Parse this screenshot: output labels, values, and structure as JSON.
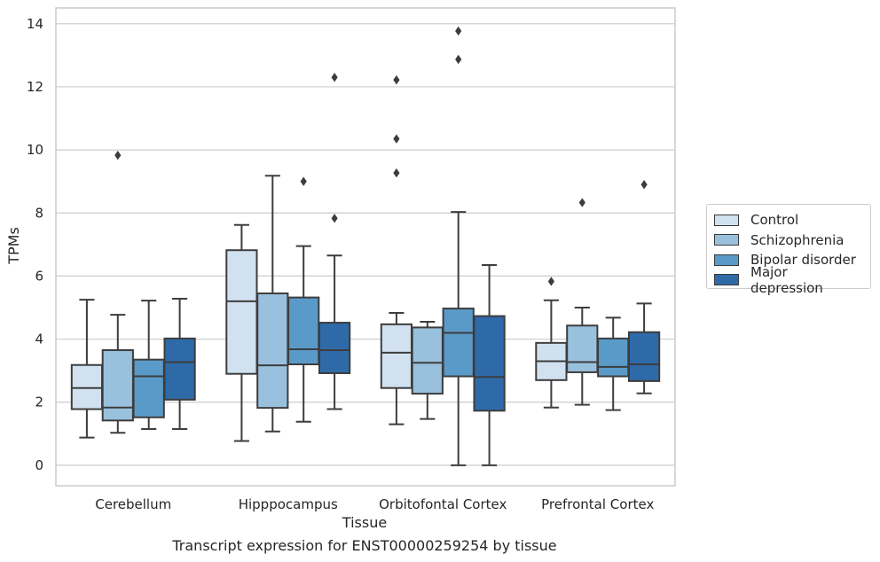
{
  "caption": "Transcript expression for ENST00000259254 by tissue",
  "chart_data": {
    "type": "box",
    "xlabel": "Tissue",
    "ylabel": "TPMs",
    "ylim": [
      -0.65,
      14.5
    ],
    "yticks": [
      0,
      2,
      4,
      6,
      8,
      10,
      12,
      14
    ],
    "grid": true,
    "legend_position": "right",
    "categories": [
      "Cerebellum",
      "Hipppocampus",
      "Orbitofontal Cortex",
      "Prefrontal Cortex"
    ],
    "series": [
      {
        "name": "Control",
        "color": "#d1e1f0",
        "boxes": [
          {
            "whislo": 0.88,
            "q1": 1.78,
            "med": 2.45,
            "q3": 3.18,
            "whishi": 5.25,
            "fliers": []
          },
          {
            "whislo": 0.77,
            "q1": 2.9,
            "med": 5.2,
            "q3": 6.82,
            "whishi": 7.62,
            "fliers": []
          },
          {
            "whislo": 1.3,
            "q1": 2.45,
            "med": 3.57,
            "q3": 4.47,
            "whishi": 4.83,
            "fliers": [
              9.27,
              10.35,
              12.22
            ]
          },
          {
            "whislo": 1.83,
            "q1": 2.7,
            "med": 3.3,
            "q3": 3.88,
            "whishi": 5.23,
            "fliers": [
              5.83
            ]
          }
        ]
      },
      {
        "name": "Schizophrenia",
        "color": "#99c1dd",
        "boxes": [
          {
            "whislo": 1.03,
            "q1": 1.42,
            "med": 1.83,
            "q3": 3.65,
            "whishi": 4.77,
            "fliers": [
              9.83
            ]
          },
          {
            "whislo": 1.07,
            "q1": 1.82,
            "med": 3.17,
            "q3": 5.45,
            "whishi": 9.18,
            "fliers": []
          },
          {
            "whislo": 1.47,
            "q1": 2.27,
            "med": 3.25,
            "q3": 4.37,
            "whishi": 4.55,
            "fliers": []
          },
          {
            "whislo": 1.92,
            "q1": 2.95,
            "med": 3.27,
            "q3": 4.43,
            "whishi": 5.0,
            "fliers": [
              8.33
            ]
          }
        ]
      },
      {
        "name": "Bipolar disorder",
        "color": "#5a9ac9",
        "boxes": [
          {
            "whislo": 1.15,
            "q1": 1.52,
            "med": 2.82,
            "q3": 3.35,
            "whishi": 5.22,
            "fliers": []
          },
          {
            "whislo": 1.38,
            "q1": 3.2,
            "med": 3.68,
            "q3": 5.32,
            "whishi": 6.95,
            "fliers": [
              9.0
            ]
          },
          {
            "whislo": 0.0,
            "q1": 2.82,
            "med": 4.2,
            "q3": 4.97,
            "whishi": 8.03,
            "fliers": [
              12.87,
              13.77
            ]
          },
          {
            "whislo": 1.75,
            "q1": 2.82,
            "med": 3.12,
            "q3": 4.02,
            "whishi": 4.68,
            "fliers": []
          }
        ]
      },
      {
        "name": "Major depression",
        "color": "#2e6aa8",
        "boxes": [
          {
            "whislo": 1.15,
            "q1": 2.08,
            "med": 3.27,
            "q3": 4.02,
            "whishi": 5.28,
            "fliers": []
          },
          {
            "whislo": 1.78,
            "q1": 2.92,
            "med": 3.65,
            "q3": 4.52,
            "whishi": 6.65,
            "fliers": [
              7.83,
              12.3
            ]
          },
          {
            "whislo": 0.0,
            "q1": 1.73,
            "med": 2.8,
            "q3": 4.73,
            "whishi": 6.35,
            "fliers": []
          },
          {
            "whislo": 2.28,
            "q1": 2.67,
            "med": 3.2,
            "q3": 4.22,
            "whishi": 5.13,
            "fliers": [
              8.9
            ]
          }
        ]
      }
    ]
  }
}
